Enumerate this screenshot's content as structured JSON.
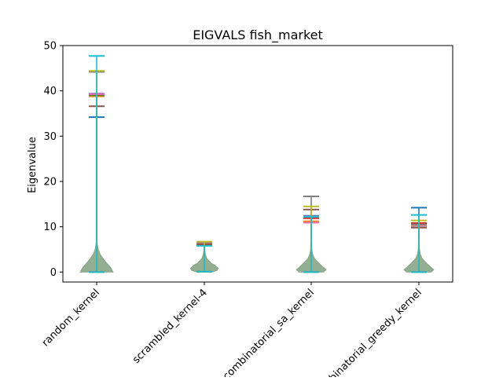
{
  "chart_data": {
    "type": "violin",
    "title": "EIGVALS fish_market",
    "xlabel": "",
    "ylabel": "Eigenvalue",
    "ylim": [
      -2.2,
      50
    ],
    "yticks": [
      0,
      10,
      20,
      30,
      40,
      50
    ],
    "categories": [
      "random_kernel",
      "scrambled_kernel-4",
      "combinatorial_sa_kernel",
      "combinatorial_greedy_kernel"
    ],
    "grid": false,
    "legend": "none",
    "violin_color": "#7f9f7f",
    "groups": [
      {
        "category": "random_kernel",
        "density": [
          [
            0,
            1.0
          ],
          [
            0.3,
            0.95
          ],
          [
            1,
            0.85
          ],
          [
            2,
            0.6
          ],
          [
            3,
            0.38
          ],
          [
            4,
            0.2
          ],
          [
            5,
            0.1
          ],
          [
            6,
            0.05
          ],
          [
            7,
            0.02
          ],
          [
            10,
            0.01
          ],
          [
            20,
            0.006
          ],
          [
            30,
            0.005
          ],
          [
            40,
            0.004
          ],
          [
            47.8,
            0.003
          ]
        ],
        "runs": [
          {
            "color": "#1f77b4",
            "min": 0,
            "max": 34.2
          },
          {
            "color": "#ff7f0e",
            "min": 0,
            "max": 38.8
          },
          {
            "color": "#2ca02c",
            "min": 0,
            "max": 39.0
          },
          {
            "color": "#d62728",
            "min": 0,
            "max": 39.2
          },
          {
            "color": "#9467bd",
            "min": 0,
            "max": 39.4
          },
          {
            "color": "#8c564b",
            "min": 0,
            "max": 36.6
          },
          {
            "color": "#e377c2",
            "min": 0,
            "max": 39.3
          },
          {
            "color": "#7f7f7f",
            "min": 0,
            "max": 44.2
          },
          {
            "color": "#bcbd22",
            "min": 0,
            "max": 44.4
          },
          {
            "color": "#17becf",
            "min": 0,
            "max": 47.7
          }
        ]
      },
      {
        "category": "scrambled_kernel-4",
        "density": [
          [
            0,
            0.4
          ],
          [
            0.3,
            0.75
          ],
          [
            0.8,
            0.85
          ],
          [
            1.5,
            0.65
          ],
          [
            2,
            0.4
          ],
          [
            3,
            0.15
          ],
          [
            4,
            0.06
          ],
          [
            5,
            0.03
          ],
          [
            6.7,
            0.015
          ]
        ],
        "runs": [
          {
            "color": "#1f77b4",
            "min": 0.1,
            "max": 5.9
          },
          {
            "color": "#ff7f0e",
            "min": 0.1,
            "max": 6.0
          },
          {
            "color": "#2ca02c",
            "min": 0.1,
            "max": 6.1
          },
          {
            "color": "#d62728",
            "min": 0.1,
            "max": 6.2
          },
          {
            "color": "#9467bd",
            "min": 0.1,
            "max": 6.4
          },
          {
            "color": "#8c564b",
            "min": 0.1,
            "max": 6.3
          },
          {
            "color": "#e377c2",
            "min": 0.1,
            "max": 6.5
          },
          {
            "color": "#7f7f7f",
            "min": 0.1,
            "max": 6.6
          },
          {
            "color": "#bcbd22",
            "min": 0.1,
            "max": 6.7
          },
          {
            "color": "#17becf",
            "min": 0.1,
            "max": 5.8
          }
        ]
      },
      {
        "category": "combinatorial_sa_kernel",
        "density": [
          [
            0,
            0.75
          ],
          [
            0.5,
            0.9
          ],
          [
            1,
            0.75
          ],
          [
            2,
            0.45
          ],
          [
            3,
            0.2
          ],
          [
            4,
            0.08
          ],
          [
            5,
            0.04
          ],
          [
            8,
            0.02
          ],
          [
            12,
            0.01
          ],
          [
            16.7,
            0.008
          ]
        ],
        "runs": [
          {
            "color": "#1f77b4",
            "min": 0,
            "max": 12.4
          },
          {
            "color": "#ff7f0e",
            "min": 0,
            "max": 11.2
          },
          {
            "color": "#2ca02c",
            "min": 0,
            "max": 12.0
          },
          {
            "color": "#d62728",
            "min": 0,
            "max": 11.9
          },
          {
            "color": "#9467bd",
            "min": 0,
            "max": 12.3
          },
          {
            "color": "#8c564b",
            "min": 0,
            "max": 13.8
          },
          {
            "color": "#e377c2",
            "min": 0,
            "max": 10.9
          },
          {
            "color": "#7f7f7f",
            "min": 0,
            "max": 16.7
          },
          {
            "color": "#bcbd22",
            "min": 0,
            "max": 14.5
          },
          {
            "color": "#17becf",
            "min": 0,
            "max": 12.2
          }
        ]
      },
      {
        "category": "combinatorial_greedy_kernel",
        "density": [
          [
            0,
            0.75
          ],
          [
            0.5,
            0.9
          ],
          [
            1,
            0.75
          ],
          [
            2,
            0.45
          ],
          [
            3,
            0.2
          ],
          [
            4,
            0.08
          ],
          [
            5,
            0.04
          ],
          [
            8,
            0.02
          ],
          [
            12,
            0.01
          ],
          [
            14.2,
            0.008
          ]
        ],
        "runs": [
          {
            "color": "#1f77b4",
            "min": 0,
            "max": 14.2
          },
          {
            "color": "#ff7f0e",
            "min": 0,
            "max": 10.3
          },
          {
            "color": "#2ca02c",
            "min": 0,
            "max": 10.6
          },
          {
            "color": "#d62728",
            "min": 0,
            "max": 10.8
          },
          {
            "color": "#9467bd",
            "min": 0,
            "max": 9.9
          },
          {
            "color": "#8c564b",
            "min": 0,
            "max": 9.8
          },
          {
            "color": "#e377c2",
            "min": 0,
            "max": 10.4
          },
          {
            "color": "#7f7f7f",
            "min": 0,
            "max": 10.5
          },
          {
            "color": "#bcbd22",
            "min": 0,
            "max": 11.4
          },
          {
            "color": "#17becf",
            "min": 0,
            "max": 12.6
          }
        ]
      }
    ]
  }
}
